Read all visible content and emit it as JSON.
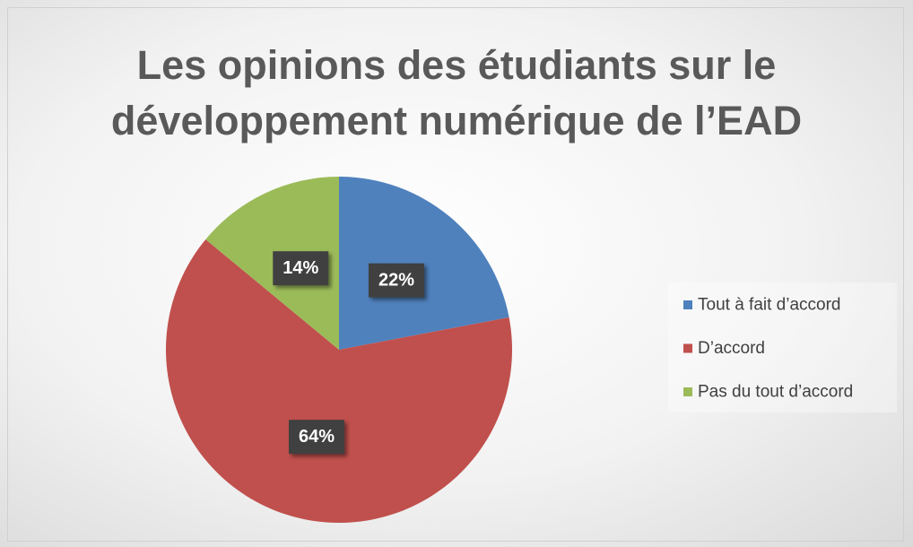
{
  "chart_data": {
    "type": "pie",
    "title": "Les opinions des étudiants sur le développement numérique de l’EAD",
    "categories": [
      "Tout à fait d’accord",
      "D’accord",
      "Pas du tout d’accord"
    ],
    "values": [
      22,
      64,
      14
    ],
    "value_labels": [
      "22%",
      "64%",
      "14%"
    ],
    "colors": [
      "#4f81bd",
      "#c0504d",
      "#9bbb59"
    ],
    "legend": "right"
  }
}
